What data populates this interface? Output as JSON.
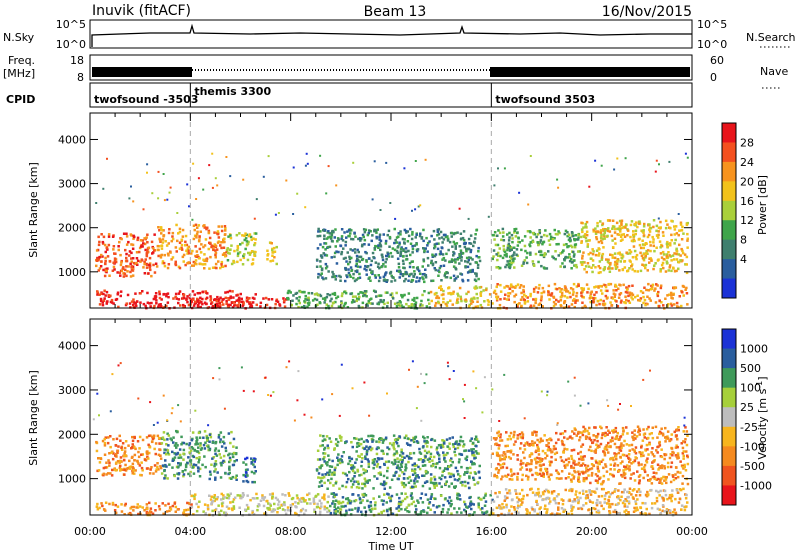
{
  "header": {
    "station": "Inuvik (fitACF)",
    "beam": "Beam 13",
    "date": "16/Nov/2015"
  },
  "strip": {
    "nsky_label": "N.Sky",
    "nsky_ticks": [
      "10^5",
      "10^0"
    ],
    "nsearch_label": "N.Search",
    "nsearch_ticks": [
      "10^5",
      "10^0"
    ],
    "freq_label": "Freq.",
    "freq_unit": "[MHz]",
    "freq_ticks": [
      "18",
      "8"
    ],
    "nave_label": "Nave",
    "nave_ticks": [
      "60",
      "0"
    ],
    "cpid_label": "CPID",
    "cpid_segments": [
      {
        "label": "twofsound -3503",
        "start_h": 0,
        "end_h": 4
      },
      {
        "label": "themis 3300",
        "start_h": 4,
        "end_h": 16
      },
      {
        "label": "twofsound 3503",
        "start_h": 16,
        "end_h": 24
      }
    ]
  },
  "chart_data": [
    {
      "type": "heatmap",
      "name": "power-panel",
      "ylabel": "Slant Range [km]",
      "xlabel": "Time UT",
      "x_ticks": [
        "00:00",
        "04:00",
        "08:00",
        "12:00",
        "16:00",
        "20:00",
        "00:00"
      ],
      "x_range_h": [
        0,
        24
      ],
      "y_ticks": [
        1000,
        2000,
        3000,
        4000
      ],
      "y_range": [
        180,
        4600
      ],
      "colorbar": {
        "title": "Power [dB]",
        "ticks": [
          "28",
          "24",
          "20",
          "16",
          "12",
          "8",
          "4"
        ],
        "colors": [
          "#e8141b",
          "#f4501f",
          "#f7931e",
          "#f2c21b",
          "#a9cf3a",
          "#3fa54a",
          "#3f7f6e",
          "#2a5e9e",
          "#1b32d6"
        ]
      },
      "regions": [
        {
          "x0": 0.2,
          "x1": 6.6,
          "y0": 200,
          "y1": 600,
          "c": 0
        },
        {
          "x0": 4.0,
          "x1": 7.8,
          "y0": 200,
          "y1": 450,
          "c": 0
        },
        {
          "x0": 0.2,
          "x1": 2.6,
          "y0": 900,
          "y1": 1900,
          "c": 1
        },
        {
          "x0": 2.6,
          "x1": 5.4,
          "y0": 1100,
          "y1": 2100,
          "c": 2
        },
        {
          "x0": 5.4,
          "x1": 6.6,
          "y0": 1200,
          "y1": 1900,
          "c": 4
        },
        {
          "x0": 7.0,
          "x1": 7.4,
          "y0": 1200,
          "y1": 1700,
          "c": 3
        },
        {
          "x0": 7.8,
          "x1": 13.5,
          "y0": 200,
          "y1": 600,
          "c": 5
        },
        {
          "x0": 13.5,
          "x1": 16.0,
          "y0": 200,
          "y1": 700,
          "c": 3
        },
        {
          "x0": 16.0,
          "x1": 23.8,
          "y0": 200,
          "y1": 750,
          "c": 2
        },
        {
          "x0": 16.0,
          "x1": 19.5,
          "y0": 1100,
          "y1": 2000,
          "c": 5
        },
        {
          "x0": 19.5,
          "x1": 23.8,
          "y0": 1000,
          "y1": 2200,
          "c": 3
        },
        {
          "x0": 9.0,
          "x1": 15.5,
          "y0": 800,
          "y1": 2000,
          "c": 6
        }
      ]
    },
    {
      "type": "heatmap",
      "name": "velocity-panel",
      "ylabel": "Slant Range [km]",
      "xlabel": "Time UT",
      "x_ticks": [
        "00:00",
        "04:00",
        "08:00",
        "12:00",
        "16:00",
        "20:00",
        "00:00"
      ],
      "x_range_h": [
        0,
        24
      ],
      "y_ticks": [
        1000,
        2000,
        3000,
        4000
      ],
      "y_range": [
        180,
        4600
      ],
      "colorbar": {
        "title": "Velocity [m s^-1]",
        "ticks": [
          "1000",
          "500",
          "100",
          "25",
          "-25",
          "-100",
          "-500",
          "-1000"
        ],
        "colors": [
          "#1b32d6",
          "#2a5e9e",
          "#3f9a5a",
          "#a6cf3a",
          "#bdbdbd",
          "#f7b51e",
          "#f58a1f",
          "#f0541f",
          "#e8141b"
        ]
      },
      "regions": [
        {
          "x0": 0.2,
          "x1": 2.8,
          "y0": 1100,
          "y1": 2000,
          "c": 6
        },
        {
          "x0": 2.8,
          "x1": 5.8,
          "y0": 1000,
          "y1": 2100,
          "c": 2
        },
        {
          "x0": 6.0,
          "x1": 6.6,
          "y0": 900,
          "y1": 1500,
          "c": 1
        },
        {
          "x0": 0.2,
          "x1": 4.0,
          "y0": 200,
          "y1": 500,
          "c": 6
        },
        {
          "x0": 4.0,
          "x1": 9.5,
          "y0": 200,
          "y1": 700,
          "c": 4
        },
        {
          "x0": 9.5,
          "x1": 16.0,
          "y0": 200,
          "y1": 700,
          "c": 2
        },
        {
          "x0": 16.0,
          "x1": 19.0,
          "y0": 1000,
          "y1": 2100,
          "c": 6
        },
        {
          "x0": 19.0,
          "x1": 23.8,
          "y0": 900,
          "y1": 2200,
          "c": 6
        },
        {
          "x0": 16.0,
          "x1": 23.8,
          "y0": 200,
          "y1": 800,
          "c": 5
        },
        {
          "x0": 9.0,
          "x1": 15.5,
          "y0": 800,
          "y1": 2000,
          "c": 2
        }
      ]
    }
  ]
}
